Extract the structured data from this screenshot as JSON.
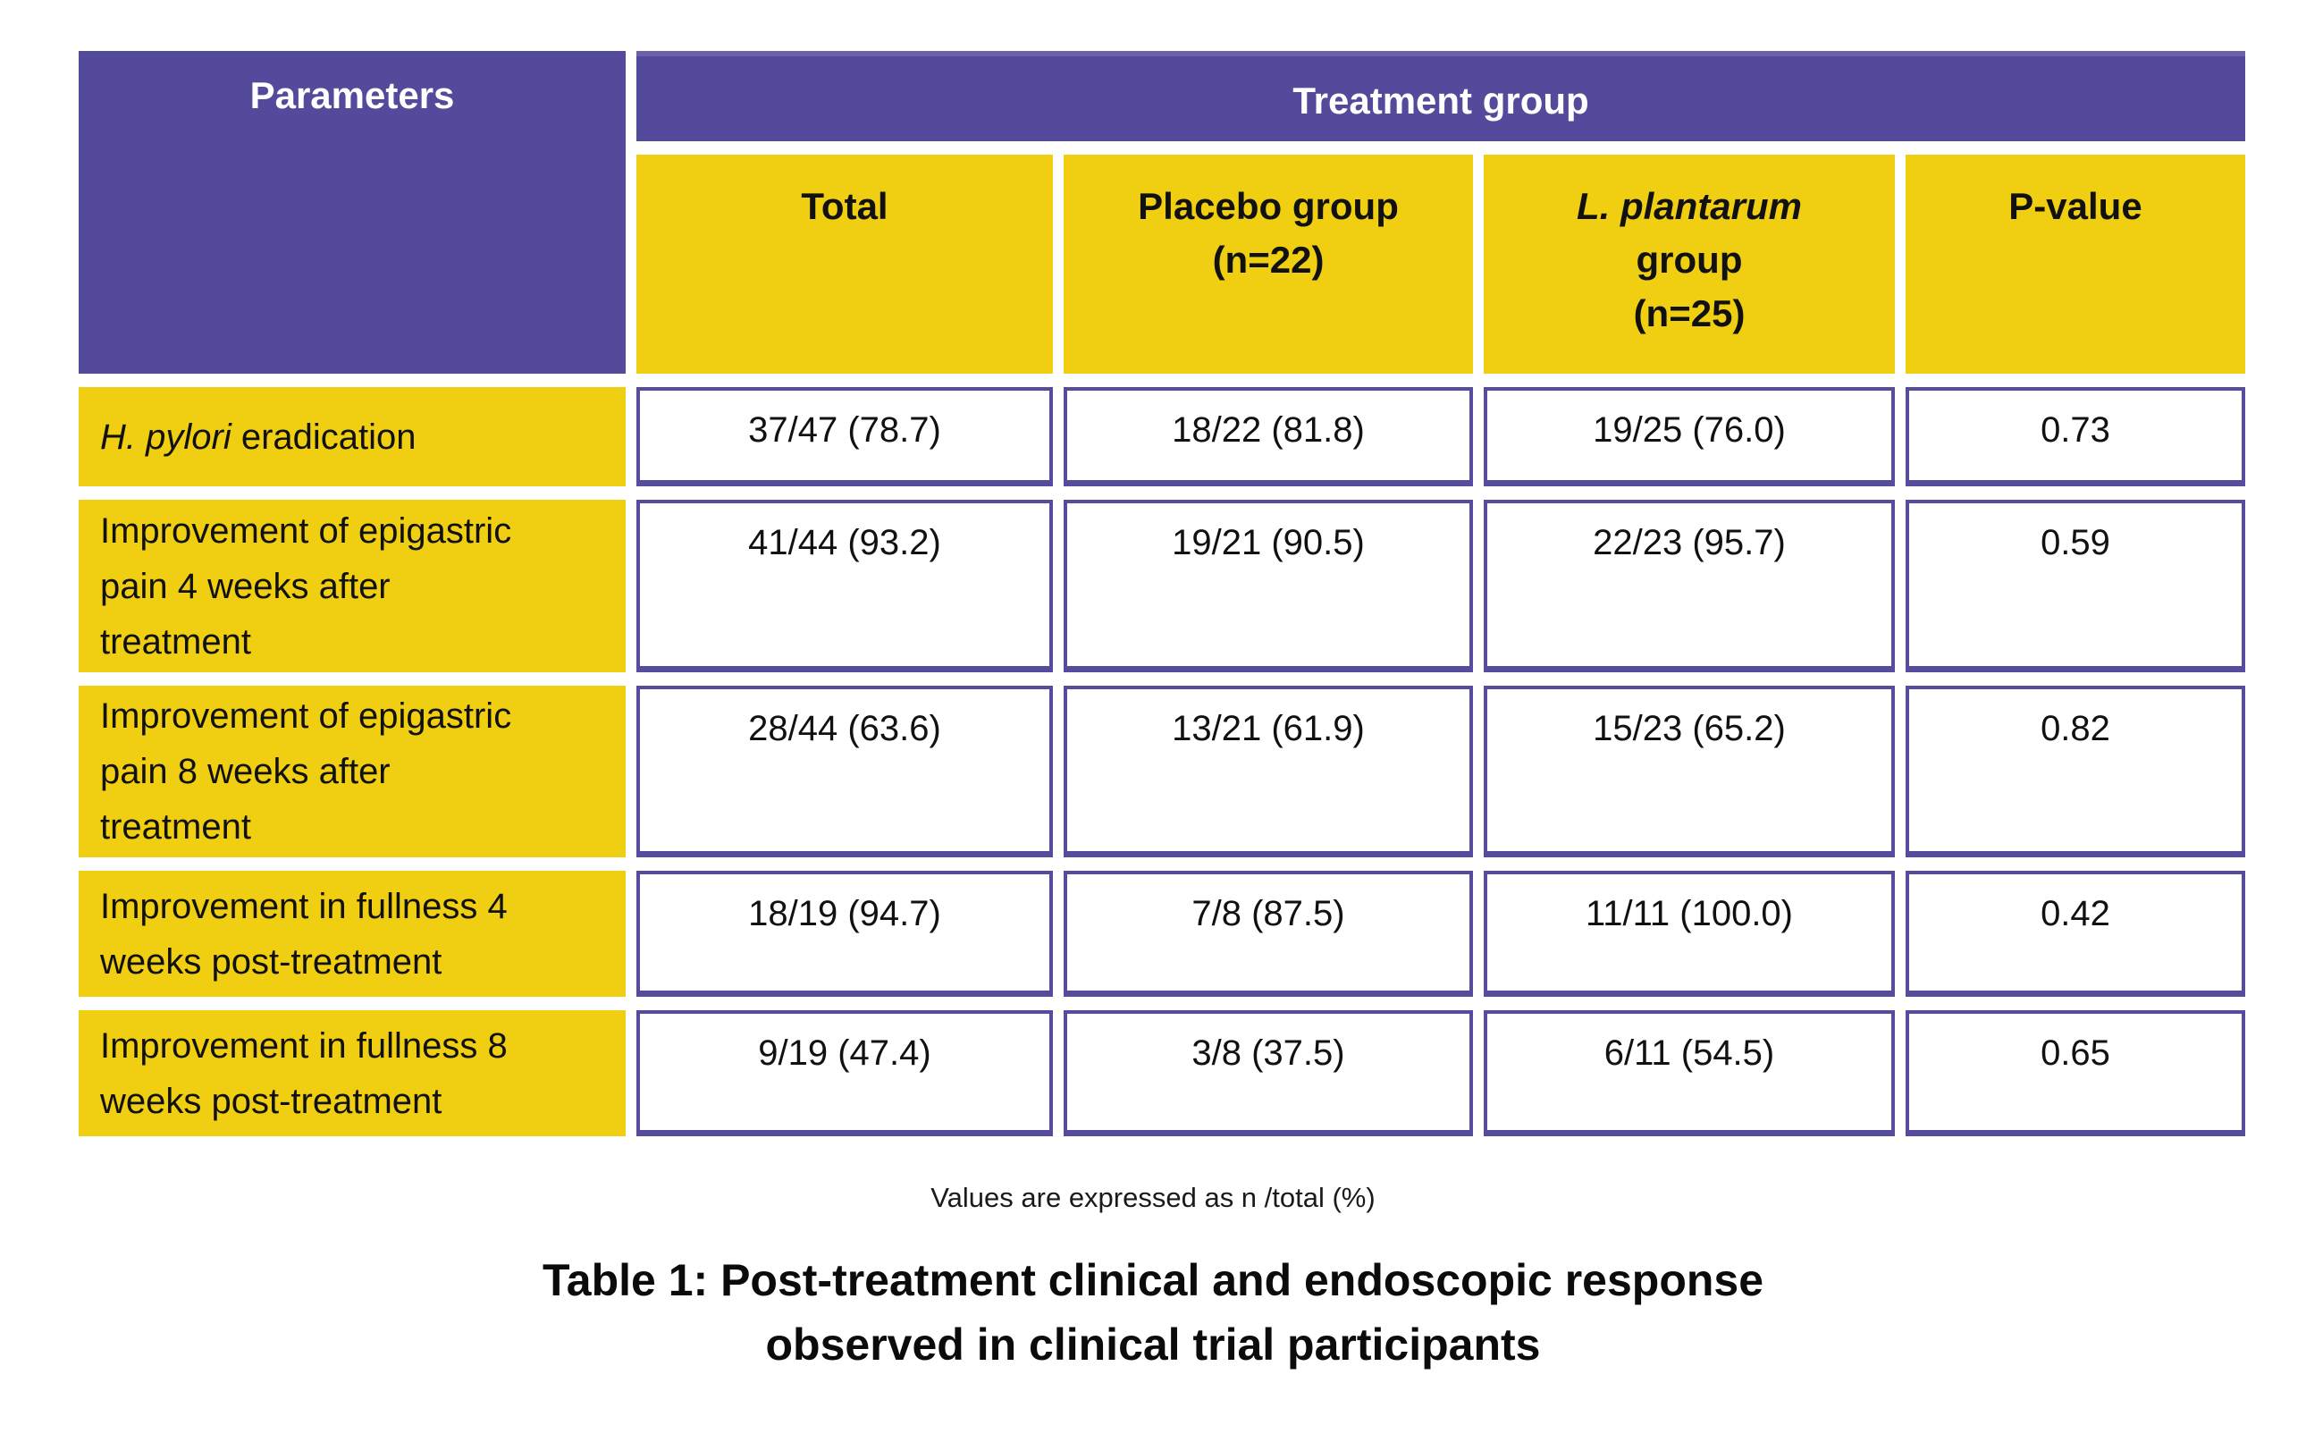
{
  "colors": {
    "purple": "#544a9b",
    "yellow": "#f0ce11",
    "cell_border": "#564c9d",
    "header_text": "#ffffff",
    "text_dark": "#1a1a1a"
  },
  "table": {
    "corner_header": "Parameters",
    "group_header": "Treatment group",
    "columns": [
      {
        "title": "Total",
        "subtitle": ""
      },
      {
        "title": "Placebo group",
        "subtitle": "(n=22)"
      },
      {
        "title_italic": "L. plantarum",
        "title": "group",
        "subtitle": "(n=25)"
      },
      {
        "title": "P-value",
        "subtitle": ""
      }
    ],
    "rows": [
      {
        "parameter_italic": "H. pylori",
        "parameter": " eradication",
        "total": "37/47 (78.7)",
        "placebo": "18/22 (81.8)",
        "plantarum": "19/25 (76.0)",
        "p_value": "0.73"
      },
      {
        "parameter_italic": "",
        "parameter": "Improvement of epigastric pain 4 weeks after treatment",
        "total": "41/44 (93.2)",
        "placebo": "19/21 (90.5)",
        "plantarum": "22/23 (95.7)",
        "p_value": "0.59"
      },
      {
        "parameter_italic": "",
        "parameter": "Improvement of epigastric pain 8 weeks after treatment",
        "total": "28/44 (63.6)",
        "placebo": "13/21 (61.9)",
        "plantarum": "15/23 (65.2)",
        "p_value": "0.82"
      },
      {
        "parameter_italic": "",
        "parameter": "Improvement in fullness 4 weeks post-treatment",
        "total": "18/19 (94.7)",
        "placebo": "7/8 (87.5)",
        "plantarum": "11/11 (100.0)",
        "p_value": "0.42"
      },
      {
        "parameter_italic": "",
        "parameter": "Improvement in fullness 8 weeks post-treatment",
        "total": "9/19 (47.4)",
        "placebo": "3/8 (37.5)",
        "plantarum": "6/11 (54.5)",
        "p_value": "0.65"
      }
    ],
    "footnote": "Values are expressed as n /total (%)",
    "caption_line1": "Table 1: Post-treatment clinical and endoscopic response",
    "caption_line2": "observed in clinical trial participants"
  },
  "chart_data": {
    "type": "table",
    "title": "Table 1: Post-treatment clinical and endoscopic response observed in clinical trial participants",
    "columns": [
      "Parameters",
      "Total",
      "Placebo group (n=22)",
      "L. plantarum group (n=25)",
      "P-value"
    ],
    "rows": [
      [
        "H. pylori eradication",
        "37/47 (78.7)",
        "18/22 (81.8)",
        "19/25 (76.0)",
        "0.73"
      ],
      [
        "Improvement of epigastric pain 4 weeks after treatment",
        "41/44 (93.2)",
        "19/21 (90.5)",
        "22/23 (95.7)",
        "0.59"
      ],
      [
        "Improvement of epigastric pain 8 weeks after treatment",
        "28/44 (63.6)",
        "13/21 (61.9)",
        "15/23 (65.2)",
        "0.82"
      ],
      [
        "Improvement in fullness 4 weeks post-treatment",
        "18/19 (94.7)",
        "7/8 (87.5)",
        "11/11 (100.0)",
        "0.42"
      ],
      [
        "Improvement in fullness 8 weeks post-treatment",
        "9/19 (47.4)",
        "3/8 (37.5)",
        "6/11 (54.5)",
        "0.65"
      ]
    ],
    "footnote": "Values are expressed as n /total (%)"
  }
}
